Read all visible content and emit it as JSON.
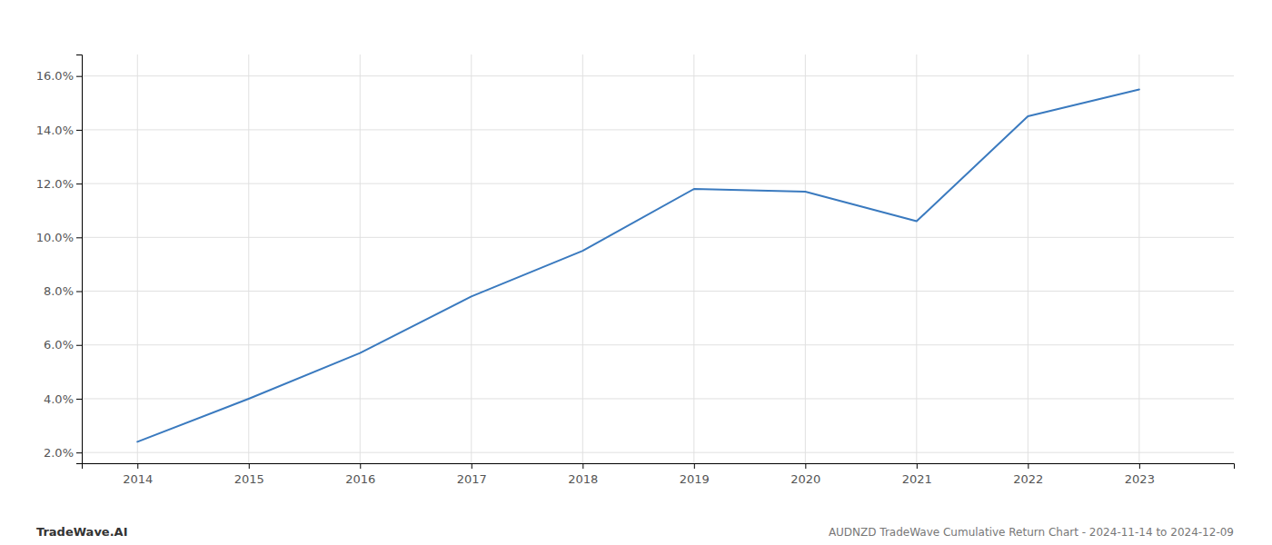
{
  "chart_data": {
    "type": "line",
    "title": "AUDNZD TradeWave Cumulative Return Chart - 2024-11-14 to 2024-12-09",
    "annotations": [
      "TradeWave.AI"
    ],
    "x": [
      2014,
      2015,
      2016,
      2017,
      2018,
      2019,
      2020,
      2021,
      2022,
      2023
    ],
    "values": [
      2.4,
      4.0,
      5.7,
      7.8,
      9.5,
      11.8,
      11.7,
      10.6,
      14.5,
      15.5
    ],
    "color": "#3a7abf",
    "xlim": [
      2013.5,
      2023.85
    ],
    "xticks": [
      2014,
      2015,
      2016,
      2017,
      2018,
      2019,
      2020,
      2021,
      2022,
      2023
    ],
    "ylim": [
      1.6,
      16.8
    ],
    "yticks": [
      {
        "value": 2.0,
        "label": "2.0%"
      },
      {
        "value": 4.0,
        "label": "4.0%"
      },
      {
        "value": 6.0,
        "label": "6.0%"
      },
      {
        "value": 8.0,
        "label": "8.0%"
      },
      {
        "value": 10.0,
        "label": "10.0%"
      },
      {
        "value": 12.0,
        "label": "12.0%"
      },
      {
        "value": 14.0,
        "label": "14.0%"
      },
      {
        "value": 16.0,
        "label": "16.0%"
      }
    ],
    "grid": true
  }
}
